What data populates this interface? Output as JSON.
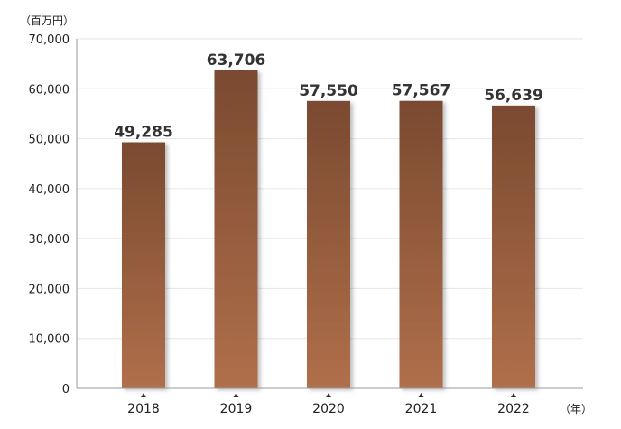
{
  "chart_data": {
    "type": "bar",
    "categories": [
      "2018",
      "2019",
      "2020",
      "2021",
      "2022"
    ],
    "values": [
      49285,
      63706,
      57550,
      57567,
      56639
    ],
    "data_labels": [
      "49,285",
      "63,706",
      "57,550",
      "57,567",
      "56,639"
    ],
    "y_unit": "（百万円）",
    "x_unit": "（年）",
    "ylim": [
      0,
      70000
    ],
    "y_ticks": [
      0,
      10000,
      20000,
      30000,
      40000,
      50000,
      60000,
      70000
    ],
    "y_tick_labels": [
      "0",
      "10,000",
      "20,000",
      "30,000",
      "40,000",
      "50,000",
      "60,000",
      "70,000"
    ],
    "grid": true,
    "colors": {
      "bar_top": "#7a4a30",
      "bar_bottom": "#b06f4b",
      "grid": "#e6e6e6",
      "axis": "#999999"
    }
  }
}
